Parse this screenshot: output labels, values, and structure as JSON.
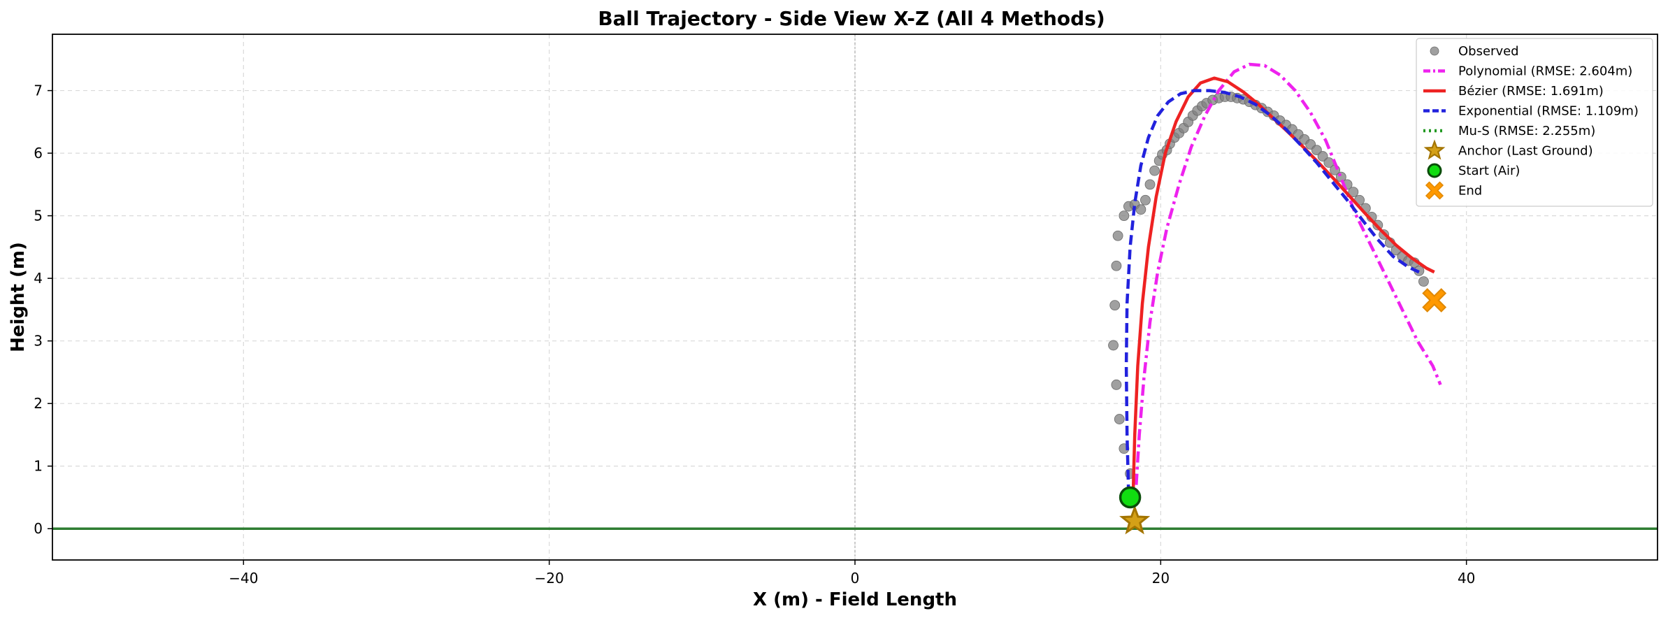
{
  "chart_data": {
    "type": "scatter",
    "title": "Ball Trajectory - Side View X-Z (All 4 Methods)",
    "xlabel": "X (m) - Field Length",
    "ylabel": "Height (m)",
    "xlim": [
      -52.5,
      52.5
    ],
    "ylim": [
      -0.5,
      7.9
    ],
    "x_ticks": [
      -40,
      -20,
      0,
      20,
      40
    ],
    "y_ticks": [
      0,
      1,
      2,
      3,
      4,
      5,
      6,
      7
    ],
    "grid": true,
    "legend_position": "top-right",
    "ground_line_y": 0,
    "center_line_x": 0,
    "colors": {
      "observed": "#808080",
      "polynomial": "#ee22ee",
      "bezier": "#ee2222",
      "exponential": "#2222dd",
      "mus": "#229922",
      "anchor": "#c08a00",
      "start": "#11dd11",
      "end": "#ff9900",
      "ground": "#2e7d32"
    },
    "series": [
      {
        "name": "Observed",
        "kind": "scatter",
        "points": [
          [
            18.0,
            0.88
          ],
          [
            17.6,
            1.28
          ],
          [
            17.3,
            1.75
          ],
          [
            17.1,
            2.3
          ],
          [
            16.9,
            2.93
          ],
          [
            17.0,
            3.57
          ],
          [
            17.1,
            4.2
          ],
          [
            17.2,
            4.68
          ],
          [
            17.6,
            5.0
          ],
          [
            17.9,
            5.15
          ],
          [
            18.3,
            5.18
          ],
          [
            18.7,
            5.1
          ],
          [
            19.0,
            5.25
          ],
          [
            19.3,
            5.5
          ],
          [
            19.6,
            5.72
          ],
          [
            19.9,
            5.88
          ],
          [
            20.1,
            5.98
          ],
          [
            20.4,
            6.05
          ],
          [
            20.6,
            6.15
          ],
          [
            20.9,
            6.25
          ],
          [
            21.2,
            6.32
          ],
          [
            21.5,
            6.4
          ],
          [
            21.8,
            6.5
          ],
          [
            22.1,
            6.6
          ],
          [
            22.4,
            6.68
          ],
          [
            22.7,
            6.75
          ],
          [
            23.0,
            6.8
          ],
          [
            23.4,
            6.85
          ],
          [
            23.8,
            6.88
          ],
          [
            24.2,
            6.9
          ],
          [
            24.6,
            6.9
          ],
          [
            25.0,
            6.88
          ],
          [
            25.4,
            6.86
          ],
          [
            25.8,
            6.82
          ],
          [
            26.2,
            6.77
          ],
          [
            26.6,
            6.72
          ],
          [
            27.0,
            6.66
          ],
          [
            27.4,
            6.6
          ],
          [
            27.8,
            6.52
          ],
          [
            28.2,
            6.45
          ],
          [
            28.6,
            6.38
          ],
          [
            29.0,
            6.3
          ],
          [
            29.4,
            6.22
          ],
          [
            29.8,
            6.14
          ],
          [
            30.2,
            6.05
          ],
          [
            30.6,
            5.95
          ],
          [
            31.0,
            5.85
          ],
          [
            31.4,
            5.73
          ],
          [
            31.8,
            5.62
          ],
          [
            32.2,
            5.5
          ],
          [
            32.6,
            5.38
          ],
          [
            33.0,
            5.25
          ],
          [
            33.4,
            5.12
          ],
          [
            33.8,
            4.98
          ],
          [
            34.2,
            4.85
          ],
          [
            34.6,
            4.7
          ],
          [
            35.0,
            4.57
          ],
          [
            35.4,
            4.45
          ],
          [
            35.8,
            4.35
          ],
          [
            36.2,
            4.28
          ],
          [
            36.6,
            4.25
          ],
          [
            36.9,
            4.12
          ],
          [
            37.2,
            3.95
          ]
        ]
      },
      {
        "name": "Polynomial (RMSE: 2.604m)",
        "kind": "line",
        "dash": "dashdot",
        "points": [
          [
            18.4,
            0.7
          ],
          [
            18.6,
            1.5
          ],
          [
            18.9,
            2.4
          ],
          [
            19.3,
            3.3
          ],
          [
            19.8,
            4.1
          ],
          [
            20.4,
            4.8
          ],
          [
            21.2,
            5.5
          ],
          [
            22.0,
            6.1
          ],
          [
            22.9,
            6.6
          ],
          [
            23.8,
            7.0
          ],
          [
            24.8,
            7.3
          ],
          [
            25.8,
            7.42
          ],
          [
            26.8,
            7.4
          ],
          [
            27.8,
            7.25
          ],
          [
            28.8,
            7.0
          ],
          [
            29.8,
            6.65
          ],
          [
            30.8,
            6.2
          ],
          [
            31.8,
            5.6
          ],
          [
            32.8,
            5.0
          ],
          [
            33.8,
            4.5
          ],
          [
            34.8,
            4.0
          ],
          [
            35.8,
            3.5
          ],
          [
            36.8,
            3.0
          ],
          [
            37.8,
            2.6
          ],
          [
            38.3,
            2.3
          ]
        ]
      },
      {
        "name": "Bézier (RMSE: 1.691m)",
        "kind": "line",
        "dash": "solid",
        "points": [
          [
            18.2,
            0.6
          ],
          [
            18.3,
            1.5
          ],
          [
            18.5,
            2.6
          ],
          [
            18.8,
            3.6
          ],
          [
            19.2,
            4.5
          ],
          [
            19.7,
            5.3
          ],
          [
            20.3,
            6.0
          ],
          [
            21.0,
            6.5
          ],
          [
            21.8,
            6.9
          ],
          [
            22.6,
            7.12
          ],
          [
            23.5,
            7.2
          ],
          [
            24.4,
            7.14
          ],
          [
            25.4,
            6.98
          ],
          [
            26.4,
            6.78
          ],
          [
            27.4,
            6.55
          ],
          [
            28.4,
            6.32
          ],
          [
            29.4,
            6.08
          ],
          [
            30.4,
            5.83
          ],
          [
            31.4,
            5.57
          ],
          [
            32.4,
            5.3
          ],
          [
            33.4,
            5.03
          ],
          [
            34.4,
            4.77
          ],
          [
            35.4,
            4.53
          ],
          [
            36.4,
            4.33
          ],
          [
            37.4,
            4.16
          ],
          [
            37.9,
            4.1
          ]
        ]
      },
      {
        "name": "Exponential (RMSE: 1.109m)",
        "kind": "line",
        "dash": "dashed",
        "points": [
          [
            17.9,
            0.55
          ],
          [
            17.8,
            1.5
          ],
          [
            17.75,
            2.6
          ],
          [
            17.8,
            3.6
          ],
          [
            18.0,
            4.5
          ],
          [
            18.3,
            5.2
          ],
          [
            18.7,
            5.8
          ],
          [
            19.2,
            6.25
          ],
          [
            19.8,
            6.6
          ],
          [
            20.5,
            6.82
          ],
          [
            21.3,
            6.95
          ],
          [
            22.2,
            7.0
          ],
          [
            23.2,
            7.0
          ],
          [
            24.2,
            6.97
          ],
          [
            25.2,
            6.9
          ],
          [
            26.2,
            6.78
          ],
          [
            27.2,
            6.6
          ],
          [
            28.2,
            6.38
          ],
          [
            29.2,
            6.12
          ],
          [
            30.2,
            5.85
          ],
          [
            31.2,
            5.55
          ],
          [
            32.2,
            5.25
          ],
          [
            33.2,
            4.93
          ],
          [
            34.2,
            4.62
          ],
          [
            35.2,
            4.35
          ],
          [
            36.2,
            4.18
          ],
          [
            36.9,
            4.1
          ]
        ]
      },
      {
        "name": "Mu-S (RMSE: 2.255m)",
        "kind": "line",
        "dash": "dotted",
        "points": []
      },
      {
        "name": "Anchor (Last Ground)",
        "kind": "marker",
        "marker": "star",
        "points": [
          [
            18.3,
            0.12
          ]
        ]
      },
      {
        "name": "Start (Air)",
        "kind": "marker",
        "marker": "circle",
        "points": [
          [
            18.0,
            0.5
          ]
        ]
      },
      {
        "name": "End",
        "kind": "marker",
        "marker": "x",
        "points": [
          [
            37.9,
            3.65
          ]
        ]
      }
    ]
  }
}
